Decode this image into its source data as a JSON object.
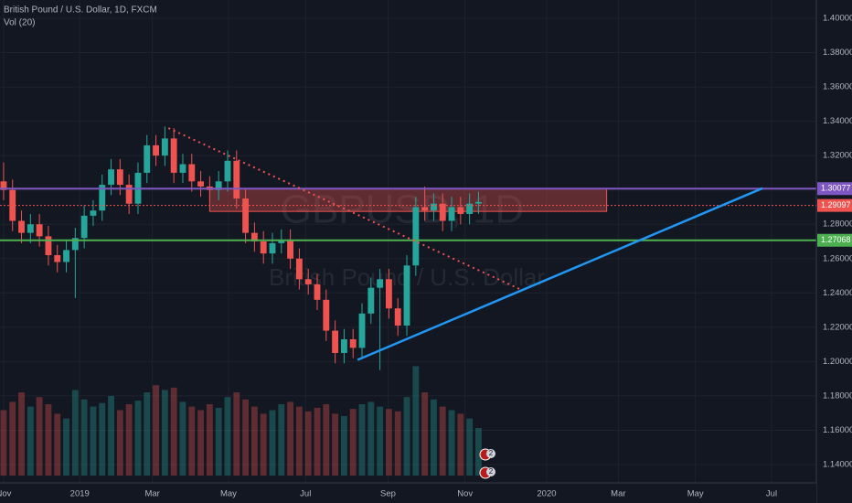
{
  "chart_data": {
    "type": "candlestick",
    "title": "British Pound / U.S. Dollar, 1D, FXCM",
    "subtitle": "Vol (20)",
    "watermark": "GBPUSD, 1D",
    "watermark_subtitle": "British Pound / U.S. Dollar",
    "up_color": "#26a69a",
    "down_color": "#ef5350",
    "xlim": [
      -0.4,
      90.7
    ],
    "xticks": [
      {
        "value": 0,
        "label": "Nov"
      },
      {
        "value": 8.5,
        "label": "2019"
      },
      {
        "value": 16.6,
        "label": "Mar"
      },
      {
        "value": 25.1,
        "label": "May"
      },
      {
        "value": 33.7,
        "label": "Jul"
      },
      {
        "value": 42.9,
        "label": "Sep"
      },
      {
        "value": 51.5,
        "label": "Nov"
      },
      {
        "value": 60.6,
        "label": "2020"
      },
      {
        "value": 68.6,
        "label": "Mar"
      },
      {
        "value": 77.2,
        "label": "May"
      },
      {
        "value": 85.7,
        "label": "Jul"
      }
    ],
    "ylim": [
      1.14,
      1.4
    ],
    "yticks": [
      {
        "value": 1.14,
        "label": "1.14000"
      },
      {
        "value": 1.16,
        "label": "1.16000"
      },
      {
        "value": 1.18,
        "label": "1.18000"
      },
      {
        "value": 1.2,
        "label": "1.20000"
      },
      {
        "value": 1.22,
        "label": "1.22000"
      },
      {
        "value": 1.24,
        "label": "1.24000"
      },
      {
        "value": 1.26,
        "label": "1.26000"
      },
      {
        "value": 1.28,
        "label": "1.28000"
      },
      {
        "value": 1.3,
        "label": "1.30000"
      },
      {
        "value": 1.32,
        "label": "1.32000"
      },
      {
        "value": 1.34,
        "label": "1.34000"
      },
      {
        "value": 1.36,
        "label": "1.36000"
      },
      {
        "value": 1.38,
        "label": "1.38000"
      },
      {
        "value": 1.4,
        "label": "1.40000"
      }
    ],
    "grid": true,
    "open": [
      1.305,
      1.3,
      1.282,
      1.275,
      1.28,
      1.273,
      1.262,
      1.258,
      1.265,
      1.272,
      1.285,
      1.288,
      1.303,
      1.312,
      1.303,
      1.292,
      1.31,
      1.326,
      1.32,
      1.33,
      1.31,
      1.315,
      1.305,
      1.302,
      1.3,
      1.305,
      1.317,
      1.295,
      1.275,
      1.27,
      1.263,
      1.269,
      1.271,
      1.26,
      1.248,
      1.245,
      1.236,
      1.218,
      1.205,
      1.213,
      1.208,
      1.228,
      1.243,
      1.248,
      1.231,
      1.221,
      1.256,
      1.29,
      1.288,
      1.292,
      1.282,
      1.29,
      1.286,
      1.292
    ],
    "high": [
      1.316,
      1.306,
      1.288,
      1.286,
      1.286,
      1.279,
      1.268,
      1.271,
      1.278,
      1.291,
      1.294,
      1.309,
      1.318,
      1.318,
      1.309,
      1.316,
      1.332,
      1.332,
      1.337,
      1.336,
      1.321,
      1.321,
      1.311,
      1.308,
      1.311,
      1.323,
      1.323,
      1.301,
      1.281,
      1.276,
      1.275,
      1.277,
      1.277,
      1.266,
      1.254,
      1.251,
      1.242,
      1.224,
      1.219,
      1.219,
      1.234,
      1.249,
      1.254,
      1.254,
      1.237,
      1.262,
      1.296,
      1.302,
      1.298,
      1.298,
      1.296,
      1.296,
      1.298,
      1.299
    ],
    "low": [
      1.294,
      1.276,
      1.269,
      1.269,
      1.267,
      1.256,
      1.252,
      1.252,
      1.237,
      1.266,
      1.279,
      1.282,
      1.297,
      1.297,
      1.286,
      1.286,
      1.304,
      1.314,
      1.314,
      1.304,
      1.304,
      1.299,
      1.296,
      1.294,
      1.294,
      1.299,
      1.289,
      1.269,
      1.264,
      1.257,
      1.257,
      1.263,
      1.254,
      1.242,
      1.239,
      1.23,
      1.212,
      1.199,
      1.199,
      1.202,
      1.202,
      1.222,
      1.195,
      1.225,
      1.215,
      1.215,
      1.25,
      1.282,
      1.282,
      1.276,
      1.276,
      1.28,
      1.28,
      1.286
    ],
    "close": [
      1.3,
      1.282,
      1.275,
      1.28,
      1.273,
      1.262,
      1.258,
      1.265,
      1.272,
      1.285,
      1.288,
      1.303,
      1.312,
      1.303,
      1.292,
      1.31,
      1.326,
      1.32,
      1.33,
      1.31,
      1.315,
      1.305,
      1.302,
      1.3,
      1.305,
      1.317,
      1.295,
      1.275,
      1.27,
      1.263,
      1.269,
      1.271,
      1.26,
      1.248,
      1.245,
      1.236,
      1.218,
      1.205,
      1.213,
      1.208,
      1.228,
      1.243,
      1.248,
      1.231,
      1.221,
      1.256,
      1.29,
      1.288,
      1.292,
      1.282,
      1.29,
      1.286,
      1.292,
      1.293
    ],
    "volume": [
      55,
      62,
      70,
      58,
      66,
      60,
      52,
      48,
      72,
      64,
      58,
      61,
      67,
      55,
      60,
      63,
      70,
      76,
      72,
      74,
      62,
      58,
      55,
      60,
      57,
      66,
      70,
      64,
      58,
      52,
      55,
      60,
      62,
      58,
      54,
      57,
      60,
      52,
      50,
      56,
      60,
      62,
      58,
      56,
      54,
      66,
      92,
      70,
      64,
      58,
      55,
      52,
      48,
      40
    ],
    "volume_lim": [
      0,
      100
    ],
    "price_lines": [
      {
        "value": 1.30077,
        "color": "#7e57c2",
        "dashed": false
      },
      {
        "value": 1.29097,
        "color": "#ef5350",
        "dashed": true
      },
      {
        "value": 1.27068,
        "color": "#4caf50",
        "dashed": false
      }
    ],
    "zone": {
      "x": [
        23.0,
        67.3
      ],
      "y": [
        1.2875,
        1.30077
      ],
      "color": "#ef5350"
    },
    "trendlines": [
      {
        "x": [
          18.4,
          57.7
        ],
        "y": [
          1.336,
          1.242
        ],
        "color": "#ef5350",
        "dashed": true
      },
      {
        "x": [
          39.5,
          84.7
        ],
        "y": [
          1.201,
          1.301
        ],
        "color": "#2196f3",
        "dashed": false
      }
    ],
    "events": [
      "2",
      "2"
    ]
  }
}
